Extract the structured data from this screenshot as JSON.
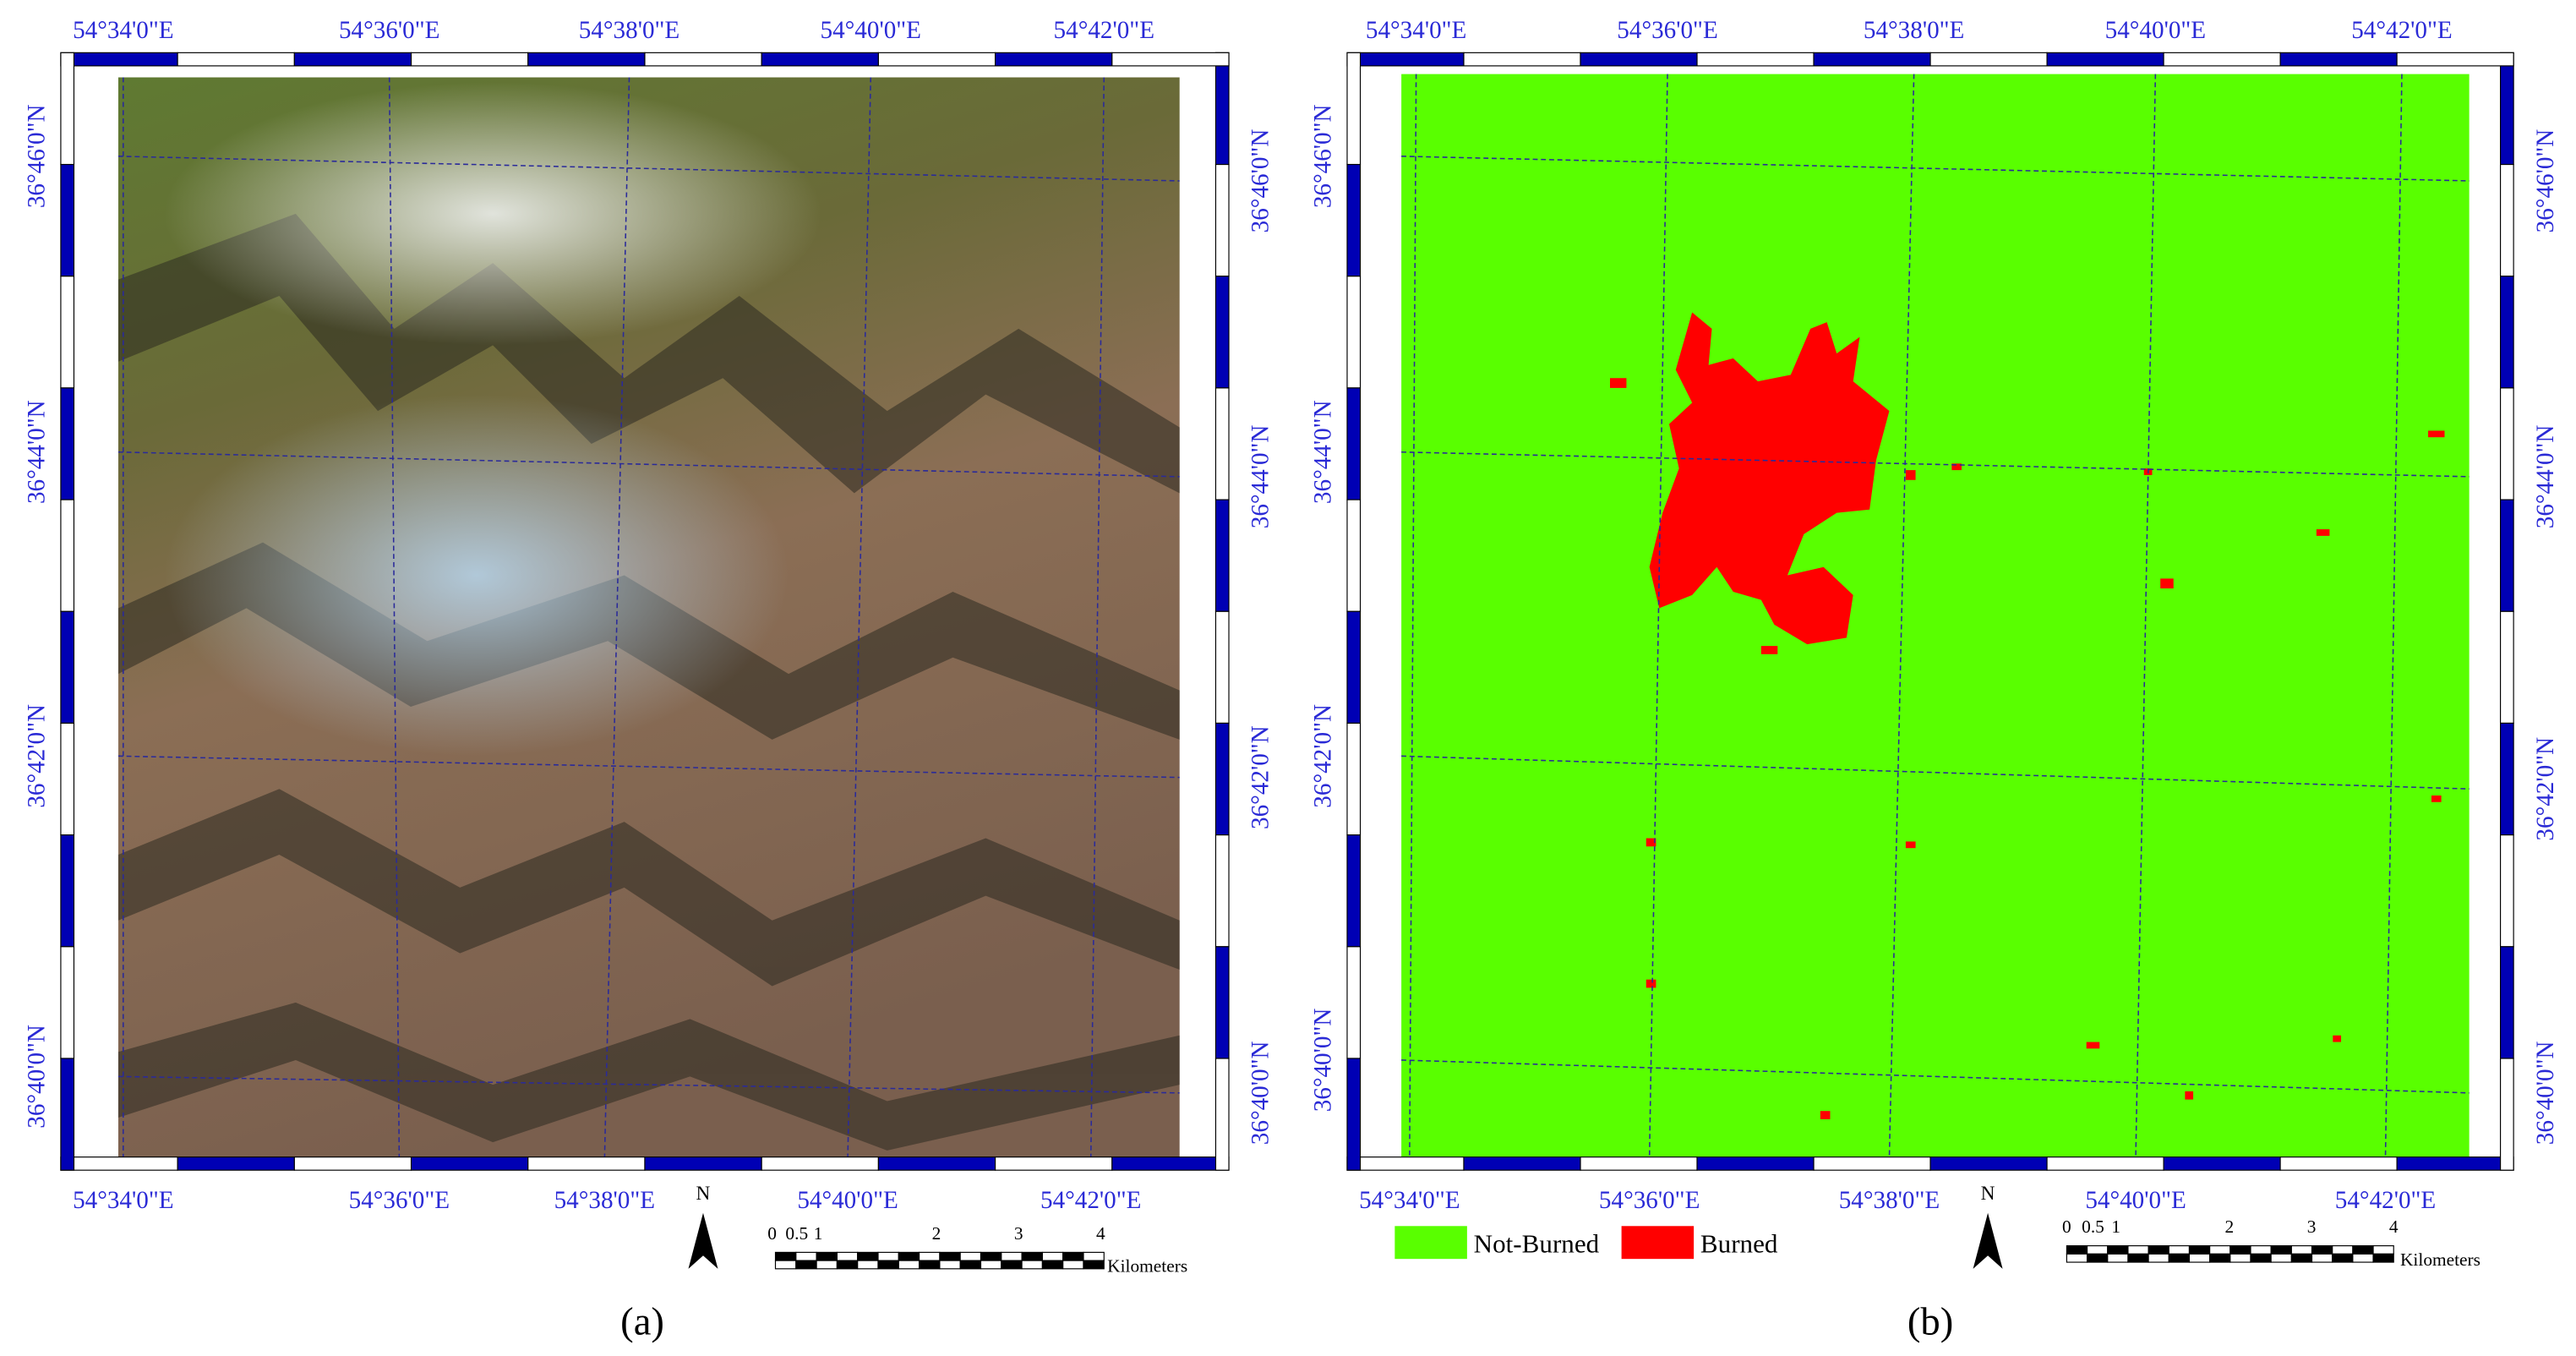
{
  "panels": [
    {
      "caption": "(a)",
      "lon_labels": [
        "54°34'0\"E",
        "54°36'0\"E",
        "54°38'0\"E",
        "54°40'0\"E",
        "54°42'0\"E"
      ],
      "lat_labels": [
        "36°40'0\"N",
        "36°42'0\"N",
        "36°44'0\"N",
        "36°46'0\"N"
      ]
    },
    {
      "caption": "(b)",
      "lon_labels": [
        "54°34'0\"E",
        "54°36'0\"E",
        "54°38'0\"E",
        "54°40'0\"E",
        "54°42'0\"E"
      ],
      "lat_labels": [
        "36°40'0\"N",
        "36°42'0\"N",
        "36°44'0\"N",
        "36°46'0\"N"
      ]
    }
  ],
  "north": "N",
  "scale_bar": {
    "labels": [
      "0",
      "0.5",
      "1",
      "2",
      "3",
      "4"
    ],
    "unit": "Kilometers"
  },
  "legend": [
    "Not-Burned",
    "Burned"
  ]
}
